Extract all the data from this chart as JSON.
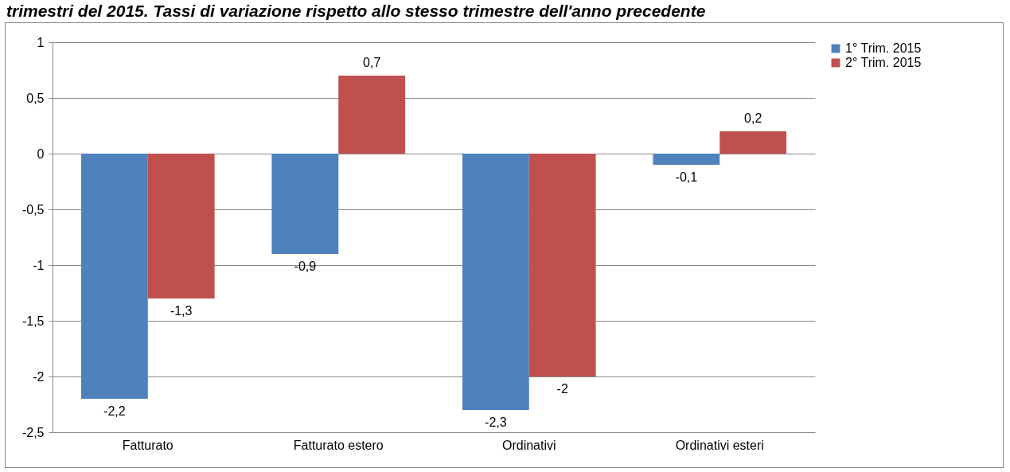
{
  "chart_data": {
    "type": "bar",
    "title": "trimestri del 2015. Tassi di variazione rispetto allo stesso trimestre dell'anno precedente",
    "categories": [
      "Fatturato",
      "Fatturato estero",
      "Ordinativi",
      "Ordinativi esteri"
    ],
    "series": [
      {
        "name": "1° Trim. 2015",
        "color": "#4f81bd",
        "values": [
          -2.2,
          -0.9,
          -2.3,
          -0.1
        ],
        "value_labels": [
          "-2,2",
          "-0,9",
          "-2,3",
          "-0,1"
        ]
      },
      {
        "name": "2° Trim. 2015",
        "color": "#c0504d",
        "values": [
          -1.3,
          0.7,
          -2,
          0.2
        ],
        "value_labels": [
          "-1,3",
          "0,7",
          "-2",
          "0,2"
        ]
      }
    ],
    "ylim": [
      -2.5,
      1
    ],
    "yticks": [
      {
        "value": -2.5,
        "label": "-2,5"
      },
      -2,
      {
        "value": -1.5,
        "label": "-1,5"
      },
      -1,
      {
        "value": -0.5,
        "label": "-0,5"
      },
      0,
      {
        "value": 0.5,
        "label": "0,5"
      },
      1
    ],
    "grid": "y",
    "legend": "right"
  }
}
